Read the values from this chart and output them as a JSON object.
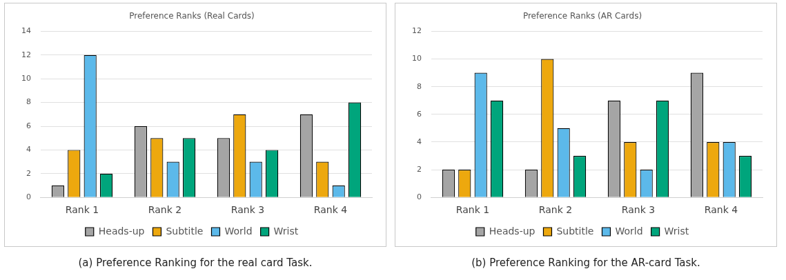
{
  "chart_data": [
    {
      "type": "bar",
      "title": "Preference Ranks (Real Cards)",
      "categories": [
        "Rank 1",
        "Rank 2",
        "Rank 3",
        "Rank 4"
      ],
      "series": [
        {
          "name": "Heads-up",
          "color": "#a5a5a5",
          "values": [
            1,
            6,
            5,
            7
          ]
        },
        {
          "name": "Subtitle",
          "color": "#eda80e",
          "values": [
            4,
            5,
            7,
            3
          ]
        },
        {
          "name": "World",
          "color": "#5cb9ea",
          "values": [
            12,
            3,
            3,
            1
          ]
        },
        {
          "name": "Wrist",
          "color": "#00a57c",
          "values": [
            2,
            5,
            4,
            8
          ]
        }
      ],
      "ylim": [
        0,
        14
      ],
      "yticks": [
        0,
        2,
        4,
        6,
        8,
        10,
        12,
        14
      ],
      "grid": "y",
      "legend": "bottom",
      "annotations": [
        "(a) Preference Ranking for the real card Task."
      ]
    },
    {
      "type": "bar",
      "title": "Preference Ranks (AR Cards)",
      "categories": [
        "Rank 1",
        "Rank 2",
        "Rank 3",
        "Rank 4"
      ],
      "series": [
        {
          "name": "Heads-up",
          "color": "#a5a5a5",
          "values": [
            2,
            2,
            7,
            9
          ]
        },
        {
          "name": "Subtitle",
          "color": "#eda80e",
          "values": [
            2,
            10,
            4,
            4
          ]
        },
        {
          "name": "World",
          "color": "#5cb9ea",
          "values": [
            9,
            5,
            2,
            4
          ]
        },
        {
          "name": "Wrist",
          "color": "#00a57c",
          "values": [
            7,
            3,
            7,
            3
          ]
        }
      ],
      "ylim": [
        0,
        12
      ],
      "yticks": [
        0,
        2,
        4,
        6,
        8,
        10,
        12
      ],
      "grid": "y",
      "legend": "bottom",
      "annotations": [
        "(b) Preference Ranking for the AR-card Task."
      ]
    }
  ]
}
